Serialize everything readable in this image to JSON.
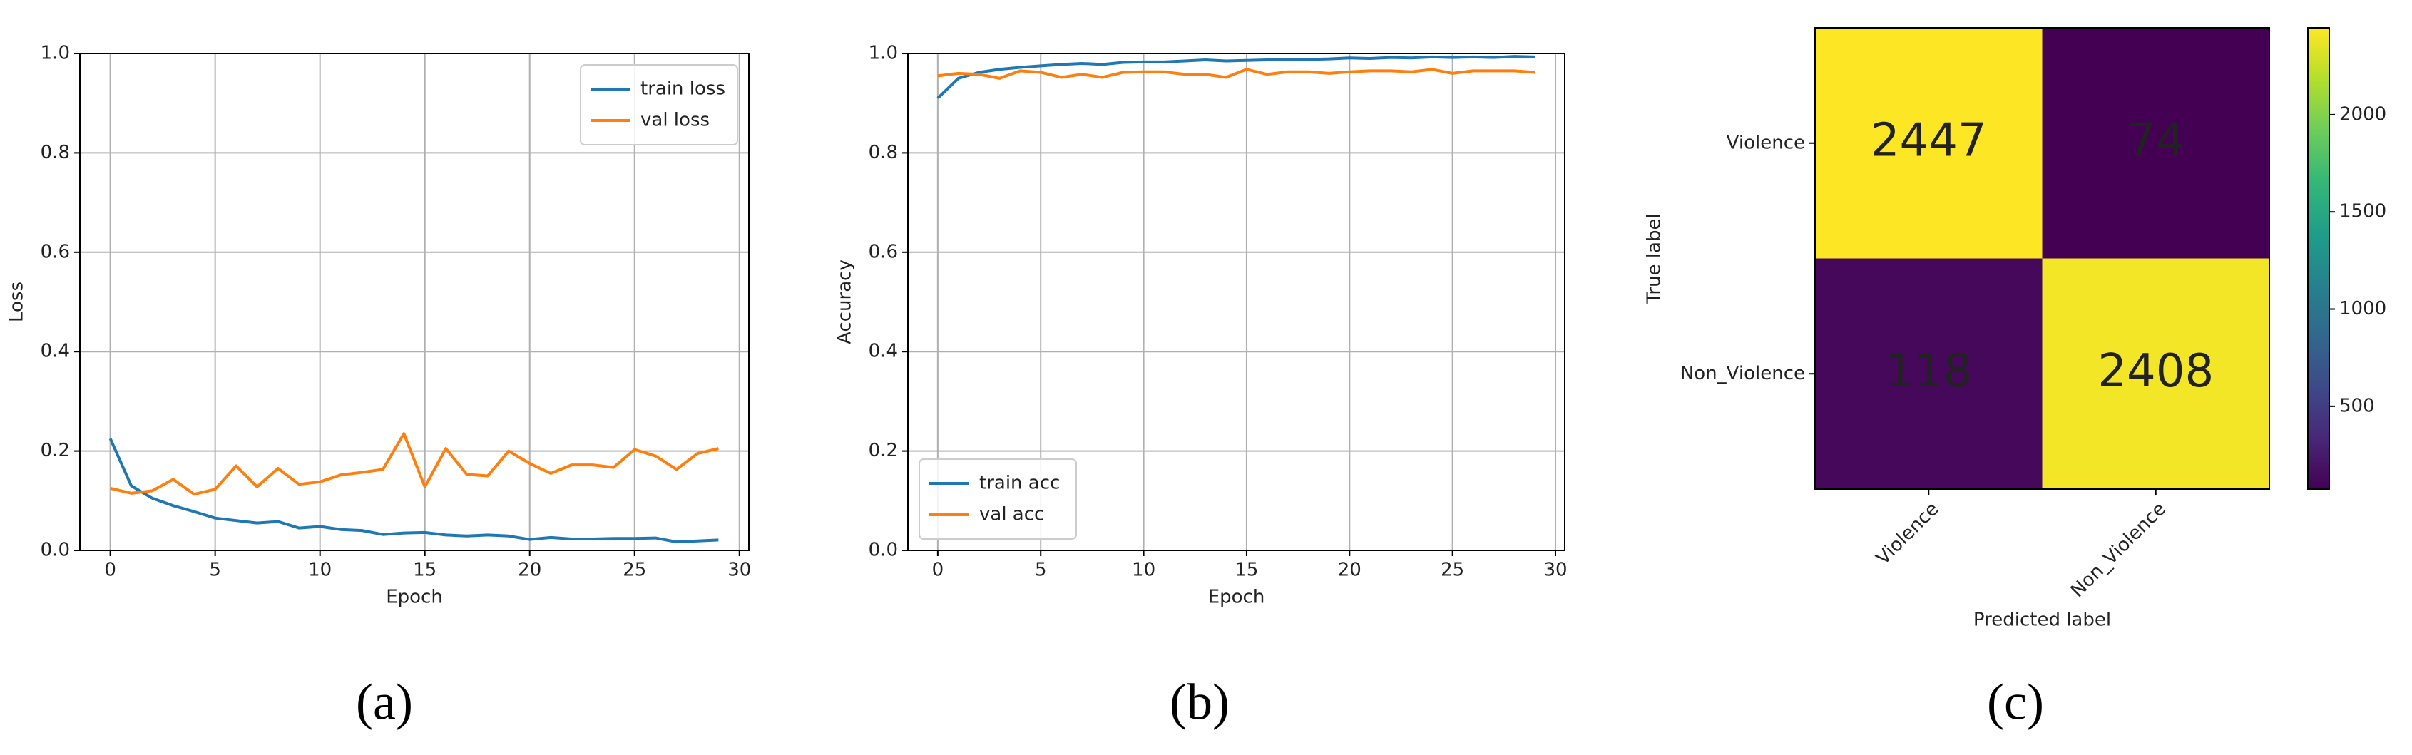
{
  "chart_data": [
    {
      "type": "line",
      "caption": "(a)",
      "xlabel": "Epoch",
      "ylabel": "Loss",
      "x": [
        0,
        1,
        2,
        3,
        4,
        5,
        6,
        7,
        8,
        9,
        10,
        11,
        12,
        13,
        14,
        15,
        16,
        17,
        18,
        19,
        20,
        21,
        22,
        23,
        24,
        25,
        26,
        27,
        28,
        29
      ],
      "series": [
        {
          "name": "train loss",
          "color": "#1f77b4",
          "values": [
            0.225,
            0.13,
            0.105,
            0.09,
            0.078,
            0.065,
            0.06,
            0.055,
            0.058,
            0.045,
            0.048,
            0.042,
            0.04,
            0.032,
            0.035,
            0.036,
            0.031,
            0.029,
            0.031,
            0.029,
            0.022,
            0.026,
            0.023,
            0.023,
            0.024,
            0.024,
            0.025,
            0.017,
            0.019,
            0.021
          ]
        },
        {
          "name": "val loss",
          "color": "#ff7f0e",
          "values": [
            0.125,
            0.115,
            0.12,
            0.143,
            0.113,
            0.123,
            0.17,
            0.128,
            0.165,
            0.133,
            0.138,
            0.152,
            0.157,
            0.163,
            0.235,
            0.128,
            0.205,
            0.153,
            0.15,
            0.2,
            0.175,
            0.155,
            0.172,
            0.172,
            0.167,
            0.203,
            0.19,
            0.163,
            0.195,
            0.205
          ]
        }
      ],
      "xlim": [
        -1.45,
        30.45
      ],
      "xticks": [
        0,
        5,
        10,
        15,
        20,
        25,
        30
      ],
      "ylim": [
        0,
        1
      ],
      "yticks": [
        {
          "value": 0,
          "label": "0.0"
        },
        0.2,
        0.4,
        0.6,
        0.8,
        {
          "value": 1,
          "label": "1.0"
        }
      ],
      "grid": true,
      "legend": "upper right"
    },
    {
      "type": "line",
      "caption": "(b)",
      "xlabel": "Epoch",
      "ylabel": "Accuracy",
      "x": [
        0,
        1,
        2,
        3,
        4,
        5,
        6,
        7,
        8,
        9,
        10,
        11,
        12,
        13,
        14,
        15,
        16,
        17,
        18,
        19,
        20,
        21,
        22,
        23,
        24,
        25,
        26,
        27,
        28,
        29
      ],
      "series": [
        {
          "name": "train acc",
          "color": "#1f77b4",
          "values": [
            0.91,
            0.95,
            0.962,
            0.968,
            0.972,
            0.975,
            0.978,
            0.98,
            0.978,
            0.982,
            0.983,
            0.983,
            0.985,
            0.987,
            0.985,
            0.986,
            0.987,
            0.988,
            0.988,
            0.989,
            0.991,
            0.99,
            0.992,
            0.991,
            0.993,
            0.992,
            0.993,
            0.992,
            0.994,
            0.993
          ]
        },
        {
          "name": "val acc",
          "color": "#ff7f0e",
          "values": [
            0.955,
            0.96,
            0.958,
            0.95,
            0.965,
            0.962,
            0.952,
            0.958,
            0.952,
            0.962,
            0.963,
            0.963,
            0.958,
            0.958,
            0.952,
            0.968,
            0.958,
            0.963,
            0.963,
            0.96,
            0.963,
            0.965,
            0.965,
            0.963,
            0.968,
            0.96,
            0.965,
            0.965,
            0.965,
            0.962
          ]
        }
      ],
      "xlim": [
        -1.45,
        30.45
      ],
      "xticks": [
        0,
        5,
        10,
        15,
        20,
        25,
        30
      ],
      "ylim": [
        0,
        1
      ],
      "yticks": [
        {
          "value": 0,
          "label": "0.0"
        },
        0.2,
        0.4,
        0.6,
        0.8,
        {
          "value": 1,
          "label": "1.0"
        }
      ],
      "grid": true,
      "legend": "lower left"
    },
    {
      "type": "heatmap",
      "caption": "(c)",
      "xlabel": "Predicted label",
      "ylabel": "True label",
      "x_categories": [
        "Violence",
        "Non_Violence"
      ],
      "y_categories": [
        "Violence",
        "Non_Violence"
      ],
      "values": [
        [
          2447,
          74
        ],
        [
          118,
          2408
        ]
      ],
      "colormap": "viridis",
      "clim": [
        74,
        2447
      ],
      "cticks": [
        500,
        1000,
        1500,
        2000
      ]
    }
  ]
}
